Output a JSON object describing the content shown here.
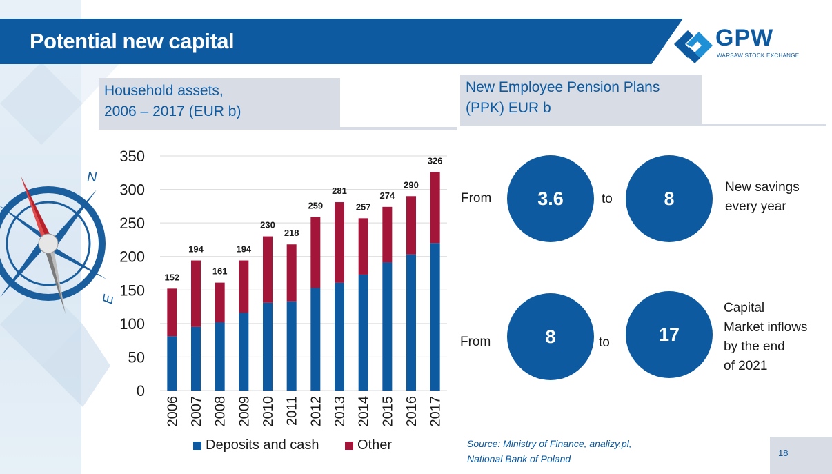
{
  "header": {
    "title": "Potential new capital",
    "logo_text": "GPW",
    "logo_subtitle": "WARSAW STOCK EXCHANGE"
  },
  "left_panel": {
    "heading_line1": "Household assets,",
    "heading_line2": "2006 – 2017 (EUR b)"
  },
  "right_panel": {
    "heading_line1": "New Employee Pension Plans",
    "heading_line2": "(PPK) EUR b",
    "rows": [
      {
        "from_label": "From",
        "from_value": "3.6",
        "to_label": "to",
        "to_value": "8",
        "description": [
          "New savings",
          "every year"
        ]
      },
      {
        "from_label": "From",
        "from_value": "8",
        "to_label": "to",
        "to_value": "17",
        "description": [
          "Capital",
          "Market inflows",
          "by the end",
          "of 2021"
        ]
      }
    ]
  },
  "source": {
    "line1": "Source: Ministry of Finance, analizy.pl,",
    "line2": "National Bank of Poland"
  },
  "page_number": "18",
  "colors": {
    "primary_blue": "#0d5aa0",
    "other_red": "#a3163a",
    "panel_grey": "#d8dde5"
  },
  "compass_labels": {
    "north": "N",
    "east": "E"
  },
  "chart_data": {
    "type": "bar",
    "stacked": true,
    "categories": [
      "2006",
      "2007",
      "2008",
      "2009",
      "2010",
      "2011",
      "2012",
      "2013",
      "2014",
      "2015",
      "2016",
      "2017"
    ],
    "series": [
      {
        "name": "Deposits and cash",
        "color": "#0d5aa0",
        "values": [
          81,
          95,
          102,
          116,
          131,
          133,
          153,
          161,
          173,
          191,
          203,
          220
        ]
      },
      {
        "name": "Other",
        "color": "#a3163a",
        "values": [
          71,
          99,
          59,
          78,
          99,
          85,
          106,
          120,
          84,
          83,
          87,
          106
        ]
      }
    ],
    "totals": [
      152,
      194,
      161,
      194,
      230,
      218,
      259,
      281,
      257,
      274,
      290,
      326
    ],
    "ylim": [
      0,
      350
    ],
    "yticks": [
      0,
      50,
      100,
      150,
      200,
      250,
      300,
      350
    ],
    "grid": true,
    "legend_position": "bottom"
  }
}
